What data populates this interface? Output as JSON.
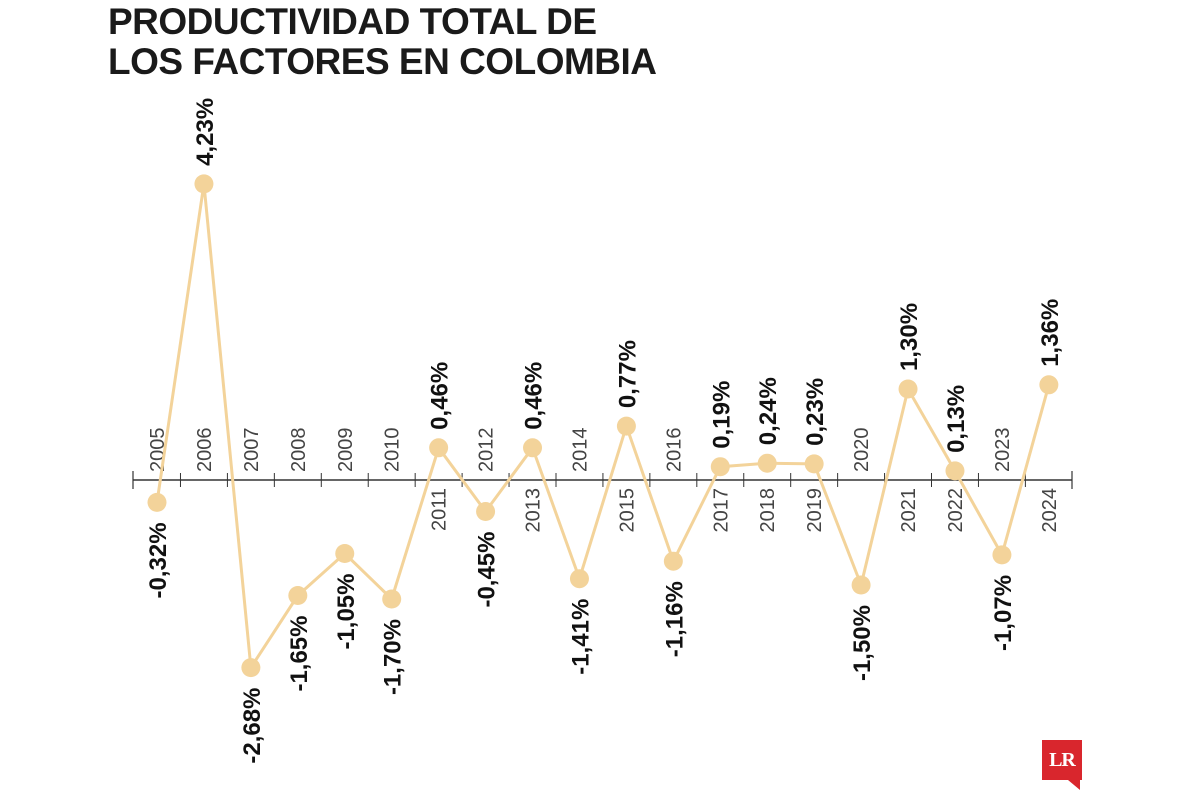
{
  "header": {
    "title_line1": "PRODUCTIVIDAD TOTAL DE",
    "title_line2": "LOS FACTORES EN COLOMBIA"
  },
  "logo": {
    "text": "LR",
    "color": "#d9262d"
  },
  "colors": {
    "line": "#f3d39a",
    "marker": "#f3d39a",
    "axis": "#333333",
    "labels": "#111111"
  },
  "chart_data": {
    "type": "line",
    "title": "PRODUCTIVIDAD TOTAL DE LOS FACTORES EN COLOMBIA",
    "xlabel": "",
    "ylabel": "",
    "categories": [
      "2005",
      "2006",
      "2007",
      "2008",
      "2009",
      "2010",
      "2011",
      "2012",
      "2013",
      "2014",
      "2015",
      "2016",
      "2017",
      "2018",
      "2019",
      "2020",
      "2021",
      "2022",
      "2023",
      "2024"
    ],
    "values": [
      -0.32,
      4.23,
      -2.68,
      -1.65,
      -1.05,
      -1.7,
      0.46,
      -0.45,
      0.46,
      -1.41,
      0.77,
      -1.16,
      0.19,
      0.24,
      0.23,
      -1.5,
      1.3,
      0.13,
      -1.07,
      1.36
    ],
    "value_labels": [
      "-0,32%",
      "4,23%",
      "-2,68%",
      "-1,65%",
      "-1,05%",
      "-1,70%",
      "0,46%",
      "-0,45%",
      "0,46%",
      "-1,41%",
      "0,77%",
      "-1,16%",
      "0,19%",
      "0,24%",
      "0,23%",
      "-1,50%",
      "1,30%",
      "0,13%",
      "-1,07%",
      "1,36%"
    ],
    "year_label_side": [
      "above",
      "above",
      "above",
      "above",
      "above",
      "above",
      "below",
      "above",
      "below",
      "above",
      "below",
      "above",
      "below",
      "below",
      "below",
      "above",
      "below",
      "below",
      "above",
      "below"
    ],
    "ylim": [
      -2.68,
      4.23
    ],
    "grid": false,
    "legend": "none"
  }
}
